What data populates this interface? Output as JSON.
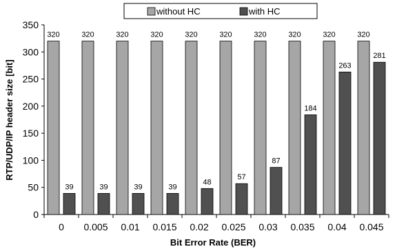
{
  "chart_data": {
    "type": "bar",
    "title": "",
    "xlabel": "Bit Error Rate (BER)",
    "ylabel": "RTP/UDP/IP header size [bit]",
    "ylim": [
      0,
      350
    ],
    "yticks": [
      0,
      50,
      100,
      150,
      200,
      250,
      300,
      350
    ],
    "categories": [
      "0",
      "0.005",
      "0.01",
      "0.015",
      "0.02",
      "0.025",
      "0.03",
      "0.035",
      "0.04",
      "0.045"
    ],
    "series": [
      {
        "name": "without HC",
        "color": "#a6a6a6",
        "values": [
          320,
          320,
          320,
          320,
          320,
          320,
          320,
          320,
          320,
          320
        ]
      },
      {
        "name": "with HC",
        "color": "#505050",
        "values": [
          39,
          39,
          39,
          39,
          48,
          57,
          87,
          184,
          263,
          281
        ]
      }
    ],
    "legend": "top-center",
    "grid": false
  }
}
